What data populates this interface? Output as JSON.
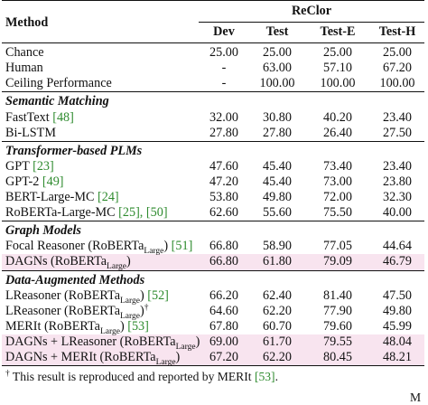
{
  "header": {
    "method": "Method",
    "dataset": "ReClor",
    "cols": [
      "Dev",
      "Test",
      "Test-E",
      "Test-H"
    ]
  },
  "sections": [
    {
      "title": "",
      "rows": [
        {
          "name": "Chance",
          "vals": [
            "25.00",
            "25.00",
            "25.00",
            "25.00"
          ]
        },
        {
          "name": "Human",
          "vals": [
            "-",
            "63.00",
            "57.10",
            "67.20"
          ]
        },
        {
          "name": "Ceiling Performance",
          "vals": [
            "-",
            "100.00",
            "100.00",
            "100.00"
          ]
        }
      ]
    },
    {
      "title": "Semantic Matching",
      "rows": [
        {
          "name": "FastText ",
          "cite": "[48]",
          "vals": [
            "32.00",
            "30.80",
            "40.20",
            "23.40"
          ]
        },
        {
          "name": "Bi-LSTM",
          "vals": [
            "27.80",
            "27.80",
            "26.40",
            "27.50"
          ]
        }
      ]
    },
    {
      "title": "Transformer-based PLMs",
      "rows": [
        {
          "name": "GPT ",
          "cite": "[23]",
          "vals": [
            "47.60",
            "45.40",
            "73.40",
            "23.40"
          ]
        },
        {
          "name": "GPT-2 ",
          "cite": "[49]",
          "vals": [
            "47.20",
            "45.40",
            "73.00",
            "23.80"
          ]
        },
        {
          "name": "BERT-Large-MC ",
          "cite": "[24]",
          "vals": [
            "53.80",
            "49.80",
            "72.00",
            "32.30"
          ]
        },
        {
          "name": "RoBERTa-Large-MC ",
          "cite": "[25], [50]",
          "vals": [
            "62.60",
            "55.60",
            "75.50",
            "40.00"
          ]
        }
      ]
    },
    {
      "title": "Graph Models",
      "rows": [
        {
          "name": "Focal Reasoner (RoBERTa",
          "sub": "Large",
          "tail": ") ",
          "cite": "[51]",
          "vals": [
            "66.80",
            "58.90",
            "77.05",
            "44.64"
          ]
        },
        {
          "name": "DAGNs (RoBERTa",
          "sub": "Large",
          "tail": ")",
          "vals": [
            "66.80",
            "61.80",
            "79.09",
            "46.79"
          ],
          "hl": true
        }
      ]
    },
    {
      "title": "Data-Augmented Methods",
      "rows": [
        {
          "name": "LReasoner (RoBERTa",
          "sub": "Large",
          "tail": ") ",
          "cite": "[52]",
          "vals": [
            "66.20",
            "62.40",
            "81.40",
            "47.50"
          ]
        },
        {
          "name": "LReasoner (RoBERTa",
          "sub": "Large",
          "tail": ")",
          "sup": "†",
          "vals": [
            "64.60",
            "62.20",
            "77.90",
            "49.80"
          ]
        },
        {
          "name": "MERIt (RoBERTa",
          "sub": "Large",
          "tail": ") ",
          "cite": "[53]",
          "vals": [
            "67.80",
            "60.70",
            "79.60",
            "45.99"
          ]
        },
        {
          "name": "DAGNs + LReasoner (RoBERTa",
          "sub": "Large",
          "tail": ")",
          "vals": [
            "69.00",
            "61.70",
            "79.55",
            "48.04"
          ],
          "hl": true
        },
        {
          "name": "DAGNs + MERIt (RoBERTa",
          "sub": "Large",
          "tail": ")",
          "vals": [
            "67.20",
            "62.20",
            "80.45",
            "48.21"
          ],
          "hl": true
        }
      ]
    }
  ],
  "footnote": {
    "mark": "†",
    "text": " This result is reproduced and reported by MERIt ",
    "cite": "[53]",
    "end": "."
  },
  "edge_text": "M"
}
